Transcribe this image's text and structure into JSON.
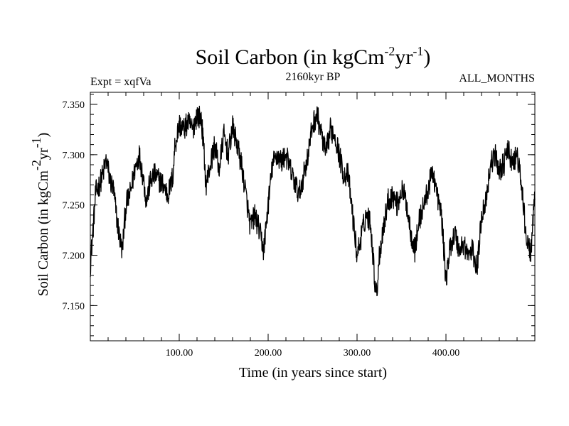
{
  "chart_data": {
    "type": "line",
    "title": {
      "prefix": "Soil Carbon (in kgCm",
      "sup1": "-2",
      "mid": "yr",
      "sup2": "-1",
      "suffix": ")"
    },
    "header_left": "Expt = xqfVa",
    "header_center": "2160kyr BP",
    "header_right": "ALL_MONTHS",
    "xlabel": "Time (in years since start)",
    "ylabel": {
      "prefix": "Soil Carbon (in kgCm",
      "sup1": "-2",
      "mid": "yr",
      "sup2": "-1",
      "suffix": ")"
    },
    "xlim": [
      0,
      500
    ],
    "ylim": [
      7.115,
      7.362
    ],
    "x_ticks": [
      {
        "value": 100,
        "label": "100.00"
      },
      {
        "value": 200,
        "label": "200.00"
      },
      {
        "value": 300,
        "label": "300.00"
      },
      {
        "value": 400,
        "label": "400.00"
      }
    ],
    "y_ticks": [
      {
        "value": 7.15,
        "label": "7.150"
      },
      {
        "value": 7.2,
        "label": "7.200"
      },
      {
        "value": 7.25,
        "label": "7.250"
      },
      {
        "value": 7.3,
        "label": "7.300"
      },
      {
        "value": 7.35,
        "label": "7.350"
      }
    ],
    "line_color": "#000000",
    "series": [
      {
        "x": [
          0,
          3,
          6,
          10,
          14,
          18,
          22,
          26,
          30,
          34,
          36,
          40,
          45,
          50,
          55,
          60,
          63,
          67,
          72,
          77,
          82,
          87,
          90,
          93,
          95,
          100,
          105,
          110,
          115,
          120,
          125,
          128,
          130,
          135,
          140,
          145,
          150,
          155,
          160,
          165,
          170,
          175,
          180,
          185,
          190,
          195,
          200,
          205,
          210,
          215,
          220,
          225,
          230,
          235,
          240,
          245,
          250,
          255,
          260,
          265,
          270,
          275,
          280,
          285,
          290,
          295,
          300,
          305,
          310,
          315,
          320,
          322,
          325,
          330,
          335,
          340,
          345,
          350,
          355,
          360,
          365,
          370,
          375,
          380,
          385,
          390,
          395,
          400,
          405,
          410,
          415,
          420,
          425,
          430,
          435,
          440,
          445,
          450,
          455,
          460,
          465,
          470,
          475,
          480,
          485,
          490,
          495,
          500
        ],
        "y": [
          7.19,
          7.225,
          7.262,
          7.27,
          7.28,
          7.295,
          7.275,
          7.265,
          7.235,
          7.212,
          7.205,
          7.25,
          7.262,
          7.285,
          7.3,
          7.275,
          7.253,
          7.272,
          7.28,
          7.275,
          7.27,
          7.26,
          7.268,
          7.28,
          7.308,
          7.33,
          7.325,
          7.332,
          7.325,
          7.34,
          7.335,
          7.3,
          7.27,
          7.29,
          7.31,
          7.285,
          7.32,
          7.3,
          7.327,
          7.31,
          7.29,
          7.26,
          7.228,
          7.24,
          7.225,
          7.205,
          7.25,
          7.29,
          7.3,
          7.293,
          7.3,
          7.285,
          7.272,
          7.26,
          7.28,
          7.3,
          7.33,
          7.34,
          7.32,
          7.3,
          7.325,
          7.32,
          7.3,
          7.28,
          7.28,
          7.24,
          7.2,
          7.22,
          7.24,
          7.235,
          7.175,
          7.16,
          7.2,
          7.23,
          7.255,
          7.26,
          7.25,
          7.265,
          7.255,
          7.225,
          7.205,
          7.235,
          7.25,
          7.265,
          7.285,
          7.26,
          7.24,
          7.175,
          7.21,
          7.222,
          7.205,
          7.212,
          7.2,
          7.205,
          7.185,
          7.24,
          7.255,
          7.29,
          7.3,
          7.285,
          7.29,
          7.305,
          7.29,
          7.3,
          7.27,
          7.22,
          7.2,
          7.255
        ]
      }
    ]
  }
}
